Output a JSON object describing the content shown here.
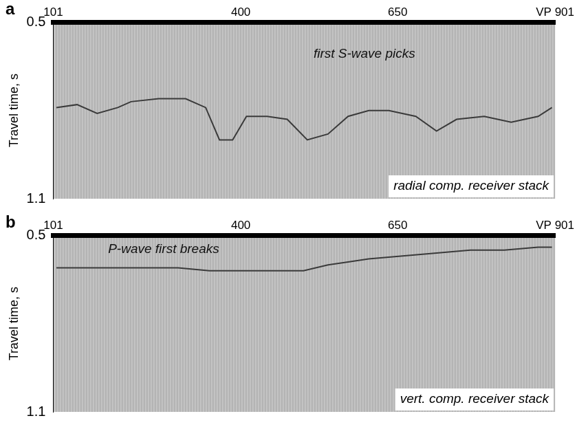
{
  "chart_data": [
    {
      "type": "line",
      "panel_label": "a",
      "color": "#3a3a3a",
      "x": [
        106,
        139,
        171,
        204,
        225,
        269,
        312,
        344,
        366,
        387,
        409,
        442,
        474,
        506,
        539,
        571,
        604,
        636,
        679,
        712,
        744,
        788,
        831,
        874,
        896
      ],
      "values": [
        0.79,
        0.78,
        0.81,
        0.79,
        0.77,
        0.76,
        0.76,
        0.79,
        0.9,
        0.9,
        0.82,
        0.82,
        0.83,
        0.9,
        0.88,
        0.82,
        0.8,
        0.8,
        0.82,
        0.87,
        0.83,
        0.82,
        0.84,
        0.82,
        0.79
      ],
      "xlim": [
        101,
        901
      ],
      "xticks": [
        101,
        400,
        650,
        {
          "value": 901,
          "label": "VP 901"
        }
      ],
      "ylim": [
        1.1,
        0.5
      ],
      "yticks": [
        0.5,
        1.1
      ],
      "ylabel": "Travel time, s",
      "annotations": [
        "first S-wave picks",
        "radial comp. receiver stack"
      ],
      "grid": false
    },
    {
      "type": "line",
      "panel_label": "b",
      "color": "#3a3a3a",
      "x": [
        106,
        150,
        200,
        250,
        300,
        350,
        400,
        450,
        500,
        539,
        571,
        604,
        658,
        712,
        766,
        820,
        874,
        896
      ],
      "values": [
        0.61,
        0.61,
        0.61,
        0.61,
        0.61,
        0.62,
        0.62,
        0.62,
        0.62,
        0.6,
        0.59,
        0.58,
        0.57,
        0.56,
        0.55,
        0.55,
        0.54,
        0.54
      ],
      "xlim": [
        101,
        901
      ],
      "xticks": [
        101,
        400,
        650,
        {
          "value": 901,
          "label": "VP 901"
        }
      ],
      "ylim": [
        1.1,
        0.5
      ],
      "yticks": [
        0.5,
        1.1
      ],
      "ylabel": "Travel time, s",
      "annotations": [
        "P-wave first breaks",
        "vert. comp. receiver stack"
      ],
      "grid": false
    }
  ]
}
